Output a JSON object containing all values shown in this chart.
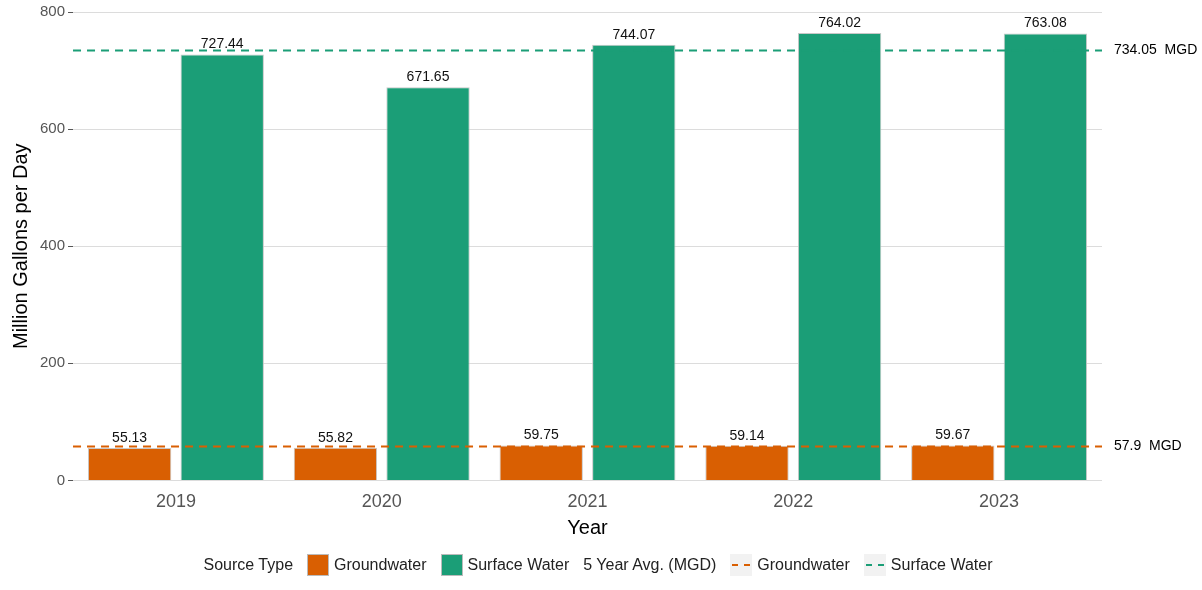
{
  "chart_data": {
    "type": "bar",
    "xlabel": "Year",
    "ylabel": "Million Gallons per Day",
    "legend_title": "Source Type",
    "categories": [
      "2019",
      "2020",
      "2021",
      "2022",
      "2023"
    ],
    "series": [
      {
        "name": "Groundwater",
        "color": "#d95f02",
        "values": [
          55.13,
          55.82,
          59.75,
          59.14,
          59.67
        ]
      },
      {
        "name": "Surface Water",
        "color": "#1b9e77",
        "values": [
          727.44,
          671.65,
          744.07,
          764.02,
          763.08
        ]
      }
    ],
    "ylim": [
      0,
      800
    ],
    "yticks": [
      0,
      200,
      400,
      600,
      800
    ],
    "grid": "y",
    "data_labels": true,
    "legend": "bottom",
    "ref_lines": [
      {
        "axis": "y",
        "value": 57.9,
        "label": "57.9  MGD",
        "color": "#d95f02",
        "line_style": "dashed"
      },
      {
        "axis": "y",
        "value": 734.05,
        "label": "734.05  MGD",
        "color": "#1b9e77",
        "line_style": "dashed"
      }
    ],
    "annotations": [
      "5 Year Avg. (MGD)"
    ]
  }
}
